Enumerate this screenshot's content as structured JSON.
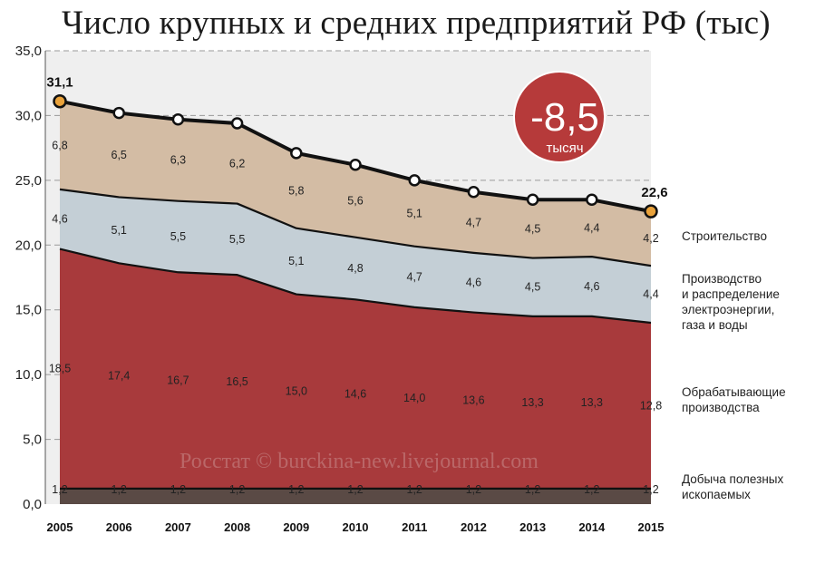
{
  "title": "Число крупных и средних предприятий РФ (тыс)",
  "chart_data": {
    "type": "area",
    "stacked": true,
    "title": "Число крупных и средних предприятий РФ (тыс)",
    "categories": [
      "2005",
      "2006",
      "2007",
      "2008",
      "2009",
      "2010",
      "2011",
      "2012",
      "2013",
      "2014",
      "2015"
    ],
    "ylim": [
      0,
      35
    ],
    "yticks": [
      "0,0",
      "5,0",
      "10,0",
      "15,0",
      "20,0",
      "25,0",
      "30,0",
      "35,0"
    ],
    "grid": true,
    "series": [
      {
        "name": "Добыча полезных ископаемых",
        "color": "#5a4a45",
        "values": [
          1.2,
          1.2,
          1.2,
          1.2,
          1.2,
          1.2,
          1.2,
          1.2,
          1.2,
          1.2,
          1.2
        ],
        "labels": [
          "1,2",
          "1,2",
          "1,2",
          "1,2",
          "1,2",
          "1,2",
          "1,2",
          "1,2",
          "1,2",
          "1,2",
          "1,2"
        ]
      },
      {
        "name": "Обрабатывающие производства",
        "color": "#a83a3c",
        "values": [
          18.5,
          17.4,
          16.7,
          16.5,
          15.0,
          14.6,
          14.0,
          13.6,
          13.3,
          13.3,
          12.8
        ],
        "labels": [
          "18,5",
          "17,4",
          "16,7",
          "16,5",
          "15,0",
          "14,6",
          "14,0",
          "13,6",
          "13,3",
          "13,3",
          "12,8"
        ]
      },
      {
        "name": "Производство и распределение электроэнергии, газа и воды",
        "color": "#c4cfd6",
        "values": [
          4.6,
          5.1,
          5.5,
          5.5,
          5.1,
          4.8,
          4.7,
          4.6,
          4.5,
          4.6,
          4.4
        ],
        "labels": [
          "4,6",
          "5,1",
          "5,5",
          "5,5",
          "5,1",
          "4,8",
          "4,7",
          "4,6",
          "4,5",
          "4,6",
          "4,4"
        ]
      },
      {
        "name": "Строительство",
        "color": "#d3bca4",
        "values": [
          6.8,
          6.5,
          6.3,
          6.2,
          5.8,
          5.6,
          5.1,
          4.7,
          4.5,
          4.4,
          4.2
        ],
        "labels": [
          "6,8",
          "6,5",
          "6,3",
          "6,2",
          "5,8",
          "5,6",
          "5,1",
          "4,7",
          "4,5",
          "4,4",
          "4,2"
        ]
      }
    ],
    "total_labels": {
      "first": "31,1",
      "last": "22,6"
    },
    "badge": {
      "value": "-8,5",
      "unit": "тысяч",
      "color": "#b63a3a"
    },
    "watermark": "Росстат © burckina-new.livejournal.com",
    "legend_lines": [
      [
        "Строительство"
      ],
      [
        "Производство",
        "и распределение",
        "электроэнергии,",
        "газа и воды"
      ],
      [
        "Обрабатывающие",
        "производства"
      ],
      [
        "Добыча полезных",
        "ископаемых"
      ]
    ]
  }
}
